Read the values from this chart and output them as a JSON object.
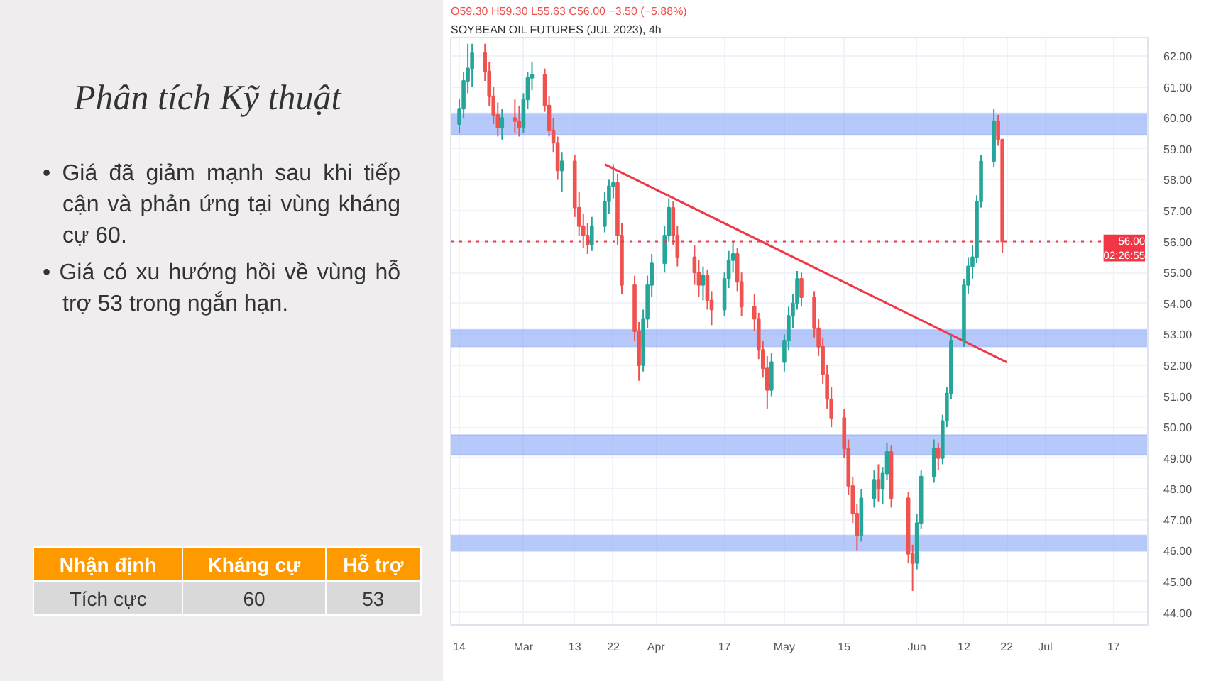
{
  "chart_data": [
    {
      "type": "other",
      "title": "Phân tích Kỹ thuật",
      "annotations": [
        "• Giá đã giảm mạnh sau khi tiếp cận và phản ứng tại vùng kháng cự 60.",
        "• Giá có xu hướng hồi về vùng hỗ trợ 53 trong ngắn hạn."
      ],
      "categories": [
        "Nhận định",
        "Kháng cự",
        "Hỗ trợ"
      ],
      "cell_labels": [
        [
          "Tích cực",
          "60",
          "53"
        ]
      ],
      "color": "#ff9900"
    },
    {
      "type": "candlestick",
      "title": "SOYBEAN OIL FUTURES (JUL 2023), 4h",
      "subtitle": "O59.30 H59.30 L55.63 C56.00 −3.50 (−5.88%)",
      "x": [
        "2023-02-14",
        "2023-02-15",
        "2023-02-16",
        "2023-02-17",
        "2023-02-20",
        "2023-02-21",
        "2023-02-22",
        "2023-02-23",
        "2023-02-24",
        "2023-02-27",
        "2023-02-28",
        "2023-03-01",
        "2023-03-02",
        "2023-03-03",
        "2023-03-06",
        "2023-03-07",
        "2023-03-08",
        "2023-03-09",
        "2023-03-10",
        "2023-03-13",
        "2023-03-14",
        "2023-03-15",
        "2023-03-16",
        "2023-03-17",
        "2023-03-20",
        "2023-03-21",
        "2023-03-22",
        "2023-03-23",
        "2023-03-24",
        "2023-03-27",
        "2023-03-28",
        "2023-03-29",
        "2023-03-30",
        "2023-03-31",
        "2023-04-03",
        "2023-04-04",
        "2023-04-05",
        "2023-04-06",
        "2023-04-10",
        "2023-04-11",
        "2023-04-12",
        "2023-04-13",
        "2023-04-14",
        "2023-04-17",
        "2023-04-18",
        "2023-04-19",
        "2023-04-20",
        "2023-04-21",
        "2023-04-24",
        "2023-04-25",
        "2023-04-26",
        "2023-04-27",
        "2023-04-28",
        "2023-05-01",
        "2023-05-02",
        "2023-05-03",
        "2023-05-04",
        "2023-05-05",
        "2023-05-08",
        "2023-05-09",
        "2023-05-10",
        "2023-05-11",
        "2023-05-12",
        "2023-05-15",
        "2023-05-16",
        "2023-05-17",
        "2023-05-18",
        "2023-05-19",
        "2023-05-22",
        "2023-05-23",
        "2023-05-24",
        "2023-05-25",
        "2023-05-26",
        "2023-05-30",
        "2023-05-31",
        "2023-06-01",
        "2023-06-02",
        "2023-06-05",
        "2023-06-06",
        "2023-06-07",
        "2023-06-08",
        "2023-06-09",
        "2023-06-12",
        "2023-06-13",
        "2023-06-14",
        "2023-06-15",
        "2023-06-16",
        "2023-06-19",
        "2023-06-20",
        "2023-06-21"
      ],
      "ohlc": [
        [
          59.8,
          60.6,
          59.5,
          60.3
        ],
        [
          60.3,
          61.5,
          60.0,
          61.2
        ],
        [
          61.2,
          62.4,
          60.8,
          61.6
        ],
        [
          61.6,
          62.4,
          61.0,
          62.1
        ],
        [
          62.1,
          62.4,
          61.2,
          61.5
        ],
        [
          61.5,
          61.8,
          60.4,
          60.7
        ],
        [
          60.7,
          61.0,
          59.8,
          60.1
        ],
        [
          60.1,
          60.5,
          59.4,
          59.7
        ],
        [
          59.7,
          60.3,
          59.3,
          60.0
        ],
        [
          60.0,
          60.6,
          59.5,
          59.9
        ],
        [
          59.9,
          60.4,
          59.4,
          59.7
        ],
        [
          59.7,
          60.8,
          59.5,
          60.6
        ],
        [
          60.6,
          61.5,
          60.3,
          61.3
        ],
        [
          61.3,
          61.8,
          60.9,
          61.4
        ],
        [
          61.4,
          61.6,
          60.2,
          60.4
        ],
        [
          60.4,
          60.7,
          59.4,
          59.6
        ],
        [
          59.6,
          60.0,
          58.9,
          59.2
        ],
        [
          59.2,
          59.4,
          58.0,
          58.3
        ],
        [
          58.3,
          58.9,
          57.6,
          58.6
        ],
        [
          58.6,
          58.8,
          56.8,
          57.1
        ],
        [
          57.1,
          57.6,
          56.2,
          56.5
        ],
        [
          56.5,
          56.9,
          55.8,
          56.2
        ],
        [
          56.2,
          56.6,
          55.6,
          55.9
        ],
        [
          55.9,
          56.8,
          55.7,
          56.5
        ],
        [
          56.5,
          57.6,
          56.3,
          57.3
        ],
        [
          57.3,
          58.0,
          56.9,
          57.8
        ],
        [
          57.8,
          58.5,
          57.4,
          57.9
        ],
        [
          57.9,
          58.2,
          55.9,
          56.2
        ],
        [
          56.2,
          56.6,
          54.3,
          54.6
        ],
        [
          54.6,
          54.9,
          52.8,
          53.1
        ],
        [
          53.1,
          53.4,
          51.5,
          52.0
        ],
        [
          52.0,
          53.8,
          51.8,
          53.5
        ],
        [
          53.5,
          54.9,
          53.2,
          54.6
        ],
        [
          54.6,
          55.6,
          54.2,
          55.3
        ],
        [
          55.3,
          56.5,
          55.0,
          56.2
        ],
        [
          56.2,
          57.4,
          56.0,
          57.1
        ],
        [
          57.1,
          57.3,
          55.9,
          56.2
        ],
        [
          56.2,
          56.5,
          55.2,
          55.5
        ],
        [
          55.5,
          55.9,
          54.6,
          55.0
        ],
        [
          55.0,
          55.4,
          54.2,
          54.6
        ],
        [
          54.6,
          55.2,
          54.1,
          54.9
        ],
        [
          54.9,
          55.1,
          53.8,
          54.1
        ],
        [
          54.1,
          54.4,
          53.3,
          53.8
        ],
        [
          53.8,
          55.0,
          53.6,
          54.8
        ],
        [
          54.8,
          55.7,
          54.5,
          55.4
        ],
        [
          55.4,
          56.0,
          55.0,
          55.6
        ],
        [
          55.6,
          55.8,
          54.4,
          54.7
        ],
        [
          54.7,
          55.0,
          53.6,
          53.9
        ],
        [
          53.9,
          54.3,
          53.1,
          53.5
        ],
        [
          53.5,
          53.7,
          52.2,
          52.5
        ],
        [
          52.5,
          52.8,
          51.6,
          51.9
        ],
        [
          51.9,
          52.3,
          50.6,
          51.2
        ],
        [
          51.2,
          52.4,
          51.0,
          52.1
        ],
        [
          52.1,
          53.0,
          51.8,
          52.8
        ],
        [
          52.8,
          53.9,
          52.5,
          53.6
        ],
        [
          53.6,
          54.3,
          53.2,
          54.0
        ],
        [
          54.0,
          55.05,
          53.8,
          54.8
        ],
        [
          54.8,
          55.0,
          53.9,
          54.2
        ],
        [
          54.2,
          54.4,
          52.9,
          53.2
        ],
        [
          53.2,
          53.5,
          52.3,
          52.6
        ],
        [
          52.6,
          52.9,
          51.4,
          51.7
        ],
        [
          51.7,
          52.0,
          50.6,
          50.9
        ],
        [
          50.9,
          51.3,
          50.0,
          50.3
        ],
        [
          50.3,
          50.6,
          49.0,
          49.3
        ],
        [
          49.3,
          49.6,
          47.8,
          48.1
        ],
        [
          48.1,
          48.4,
          46.9,
          47.2
        ],
        [
          47.2,
          47.5,
          46.0,
          46.5
        ],
        [
          46.5,
          48.0,
          46.3,
          47.7
        ],
        [
          47.7,
          48.6,
          47.4,
          48.3
        ],
        [
          48.3,
          48.8,
          47.6,
          48.0
        ],
        [
          48.0,
          48.7,
          47.5,
          48.5
        ],
        [
          48.5,
          49.5,
          48.3,
          49.2
        ],
        [
          49.2,
          49.4,
          47.4,
          47.7
        ],
        [
          47.7,
          47.9,
          45.6,
          45.9
        ],
        [
          45.9,
          46.2,
          44.7,
          45.6
        ],
        [
          45.6,
          47.2,
          45.4,
          46.9
        ],
        [
          46.9,
          48.6,
          46.7,
          48.4
        ],
        [
          48.4,
          49.6,
          48.2,
          49.3
        ],
        [
          49.3,
          49.5,
          48.6,
          49.0
        ],
        [
          49.0,
          50.4,
          48.8,
          50.2
        ],
        [
          50.2,
          51.3,
          50.0,
          51.1
        ],
        [
          51.1,
          53.0,
          50.9,
          52.8
        ],
        [
          52.8,
          54.8,
          52.6,
          54.6
        ],
        [
          54.6,
          55.5,
          54.3,
          55.2
        ],
        [
          55.2,
          55.9,
          54.8,
          55.5
        ],
        [
          55.5,
          57.5,
          55.3,
          57.3
        ],
        [
          57.3,
          58.8,
          57.1,
          58.6
        ],
        [
          58.6,
          60.3,
          58.4,
          59.9
        ],
        [
          59.9,
          60.1,
          59.1,
          59.3
        ],
        [
          59.3,
          59.3,
          55.63,
          56.0
        ]
      ],
      "colors": [
        "#26a69a",
        "#26a69a",
        "#26a69a",
        "#26a69a",
        "#ef5350",
        "#ef5350",
        "#ef5350",
        "#ef5350",
        "#26a69a",
        "#ef5350",
        "#ef5350",
        "#26a69a",
        "#26a69a",
        "#26a69a",
        "#ef5350",
        "#ef5350",
        "#ef5350",
        "#ef5350",
        "#26a69a",
        "#ef5350",
        "#ef5350",
        "#ef5350",
        "#ef5350",
        "#26a69a",
        "#26a69a",
        "#26a69a",
        "#26a69a",
        "#ef5350",
        "#ef5350",
        "#ef5350",
        "#ef5350",
        "#26a69a",
        "#26a69a",
        "#26a69a",
        "#26a69a",
        "#26a69a",
        "#ef5350",
        "#ef5350",
        "#ef5350",
        "#ef5350",
        "#26a69a",
        "#ef5350",
        "#ef5350",
        "#26a69a",
        "#26a69a",
        "#26a69a",
        "#ef5350",
        "#ef5350",
        "#ef5350",
        "#ef5350",
        "#ef5350",
        "#ef5350",
        "#26a69a",
        "#26a69a",
        "#26a69a",
        "#26a69a",
        "#26a69a",
        "#ef5350",
        "#ef5350",
        "#ef5350",
        "#ef5350",
        "#ef5350",
        "#ef5350",
        "#ef5350",
        "#ef5350",
        "#ef5350",
        "#ef5350",
        "#26a69a",
        "#26a69a",
        "#ef5350",
        "#26a69a",
        "#26a69a",
        "#ef5350",
        "#ef5350",
        "#ef5350",
        "#26a69a",
        "#26a69a",
        "#26a69a",
        "#ef5350",
        "#26a69a",
        "#26a69a",
        "#26a69a",
        "#26a69a",
        "#26a69a",
        "#26a69a",
        "#26a69a",
        "#26a69a",
        "#26a69a",
        "#ef5350",
        "#ef5350"
      ],
      "series": [
        {
          "type": "line",
          "color": "#f23645",
          "x": [
            "2023-03-20",
            "2023-06-22"
          ],
          "values": [
            58.5,
            52.1
          ]
        }
      ],
      "bands": [
        {
          "axis": "y",
          "from": 59.45,
          "to": 60.15,
          "color": "#7b9cf5"
        },
        {
          "axis": "y",
          "from": 52.6,
          "to": 53.15,
          "color": "#7b9cf5"
        },
        {
          "axis": "y",
          "from": 49.1,
          "to": 49.75,
          "color": "#7b9cf5"
        },
        {
          "axis": "y",
          "from": 46.0,
          "to": 46.5,
          "color": "#7b9cf5"
        }
      ],
      "ref_lines": [
        {
          "axis": "y",
          "value": 56.0,
          "label": "56.00",
          "color": "#f23645",
          "line_style": "dotted"
        }
      ],
      "annotations": [
        "02:26:55"
      ],
      "xlim": [
        "2023-02-12",
        "2023-07-25"
      ],
      "xticks": [
        {
          "value": "2023-02-14",
          "label": "14"
        },
        {
          "value": "2023-03-01",
          "label": "Mar"
        },
        {
          "value": "2023-03-13",
          "label": "13"
        },
        {
          "value": "2023-03-22",
          "label": "22"
        },
        {
          "value": "2023-04-01",
          "label": "Apr"
        },
        {
          "value": "2023-04-17",
          "label": "17"
        },
        {
          "value": "2023-05-01",
          "label": "May"
        },
        {
          "value": "2023-05-15",
          "label": "15"
        },
        {
          "value": "2023-06-01",
          "label": "Jun"
        },
        {
          "value": "2023-06-12",
          "label": "12"
        },
        {
          "value": "2023-06-22",
          "label": "22"
        },
        {
          "value": "2023-07-01",
          "label": "Jul"
        },
        {
          "value": "2023-07-17",
          "label": "17"
        }
      ],
      "ylim": [
        43.6,
        62.6
      ],
      "yticks": [
        {
          "value": 44,
          "label": "44.00"
        },
        {
          "value": 45,
          "label": "45.00"
        },
        {
          "value": 46,
          "label": "46.00"
        },
        {
          "value": 47,
          "label": "47.00"
        },
        {
          "value": 48,
          "label": "48.00"
        },
        {
          "value": 49,
          "label": "49.00"
        },
        {
          "value": 50,
          "label": "50.00"
        },
        {
          "value": 51,
          "label": "51.00"
        },
        {
          "value": 52,
          "label": "52.00"
        },
        {
          "value": 53,
          "label": "53.00"
        },
        {
          "value": 54,
          "label": "54.00"
        },
        {
          "value": 55,
          "label": "55.00"
        },
        {
          "value": 56,
          "label": "56.00"
        },
        {
          "value": 57,
          "label": "57.00"
        },
        {
          "value": 58,
          "label": "58.00"
        },
        {
          "value": 59,
          "label": "59.00"
        },
        {
          "value": 60,
          "label": "60.00"
        },
        {
          "value": 61,
          "label": "61.00"
        },
        {
          "value": 62,
          "label": "62.00"
        }
      ],
      "grid": true
    }
  ]
}
